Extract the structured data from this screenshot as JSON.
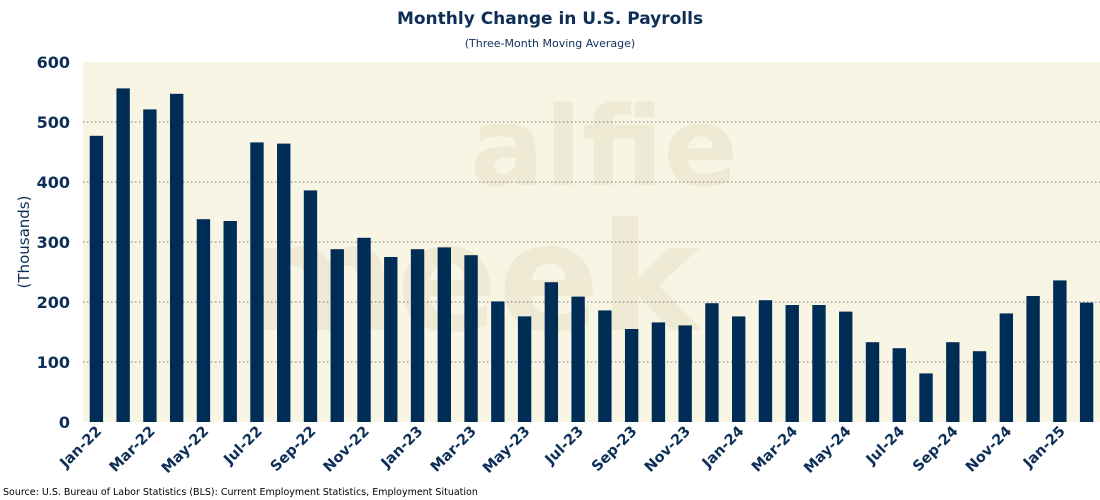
{
  "source": "Source: U.S. Bureau of Labor Statistics (BLS): Current Employment Statistics, Employment Situation",
  "watermark": {
    "line1": "alfie",
    "line2": "meek"
  },
  "colors": {
    "bar": "#002d56",
    "plot_bg": "#f9f5e5",
    "text": "#0d2f57"
  },
  "chart_data": {
    "type": "bar",
    "title": "Monthly Change in U.S. Payrolls",
    "subtitle": "(Three-Month Moving Average)",
    "ylabel": "(Thousands)",
    "xlabel": "",
    "ylim": [
      0,
      600
    ],
    "yticks": [
      0,
      100,
      200,
      300,
      400,
      500,
      600
    ],
    "grid": true,
    "categories": [
      "Jan-22",
      "Feb-22",
      "Mar-22",
      "Apr-22",
      "May-22",
      "Jun-22",
      "Jul-22",
      "Aug-22",
      "Sep-22",
      "Oct-22",
      "Nov-22",
      "Dec-22",
      "Jan-23",
      "Feb-23",
      "Mar-23",
      "Apr-23",
      "May-23",
      "Jun-23",
      "Jul-23",
      "Aug-23",
      "Sep-23",
      "Oct-23",
      "Nov-23",
      "Dec-23",
      "Jan-24",
      "Feb-24",
      "Mar-24",
      "Apr-24",
      "May-24",
      "Jun-24",
      "Jul-24",
      "Aug-24",
      "Sep-24",
      "Oct-24",
      "Nov-24",
      "Dec-24",
      "Jan-25",
      "Feb-25"
    ],
    "tick_labels": [
      "Jan-22",
      "Mar-22",
      "May-22",
      "Jul-22",
      "Sep-22",
      "Nov-22",
      "Jan-23",
      "Mar-23",
      "May-23",
      "Jul-23",
      "Sep-23",
      "Nov-23",
      "Jan-24",
      "Mar-24",
      "May-24",
      "Jul-24",
      "Sep-24",
      "Nov-24",
      "Jan-25"
    ],
    "values": [
      477,
      556,
      521,
      547,
      338,
      335,
      466,
      464,
      386,
      288,
      307,
      275,
      288,
      291,
      278,
      201,
      176,
      233,
      209,
      186,
      155,
      166,
      161,
      198,
      176,
      203,
      195,
      195,
      184,
      133,
      123,
      81,
      133,
      118,
      181,
      210,
      236,
      199
    ]
  }
}
